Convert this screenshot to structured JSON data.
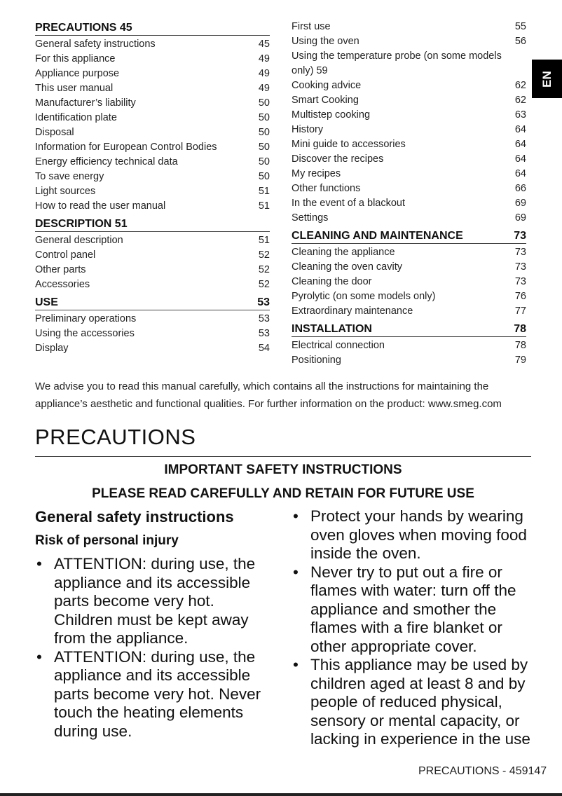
{
  "toc_left": [
    {
      "header": "PRECAUTIONS 45",
      "header_num": "",
      "items": [
        [
          "General safety instructions",
          "45"
        ],
        [
          "For this appliance",
          "49"
        ],
        [
          "Appliance purpose",
          "49"
        ],
        [
          "This user manual",
          "49"
        ],
        [
          "Manufacturer’s liability",
          "50"
        ],
        [
          "Identification plate",
          "50"
        ],
        [
          "Disposal",
          "50"
        ],
        [
          "Information for European Control Bodies",
          "50"
        ],
        [
          "Energy efficiency technical data",
          "50"
        ],
        [
          "To save energy",
          "50"
        ],
        [
          "Light sources",
          "51"
        ],
        [
          "How to read the user manual",
          "51"
        ]
      ]
    },
    {
      "header": "DESCRIPTION 51",
      "header_num": "",
      "items": [
        [
          "General description",
          "51"
        ],
        [
          "Control panel",
          "52"
        ],
        [
          "Other parts",
          "52"
        ],
        [
          "Accessories",
          "52"
        ]
      ]
    },
    {
      "header": "USE",
      "header_num": "53",
      "items": [
        [
          "Preliminary operations",
          "53"
        ],
        [
          "Using the accessories",
          "53"
        ],
        [
          "Display",
          "54"
        ]
      ]
    }
  ],
  "toc_right": [
    {
      "header": "",
      "header_num": "",
      "items": [
        [
          "First use",
          "55"
        ],
        [
          "Using the oven",
          "56"
        ],
        [
          "Using the temperature probe (on some models only) 59",
          ""
        ],
        [
          "Cooking advice",
          "62"
        ],
        [
          "Smart Cooking",
          "62"
        ],
        [
          "Multistep cooking",
          "63"
        ],
        [
          "History",
          "64"
        ],
        [
          "Mini guide to accessories",
          "64"
        ],
        [
          "Discover the recipes",
          "64"
        ],
        [
          "My recipes",
          "64"
        ],
        [
          "Other functions",
          "66"
        ],
        [
          "In the event of a blackout",
          "69"
        ],
        [
          "Settings",
          "69"
        ]
      ]
    },
    {
      "header": "CLEANING AND MAINTENANCE",
      "header_num": "73",
      "items": [
        [
          "Cleaning the appliance",
          "73"
        ],
        [
          "Cleaning the oven cavity",
          "73"
        ],
        [
          "Cleaning the door",
          "73"
        ],
        [
          "Pyrolytic (on some models only)",
          "76"
        ],
        [
          "Extraordinary maintenance",
          "77"
        ]
      ]
    },
    {
      "header": "INSTALLATION",
      "header_num": "78",
      "items": [
        [
          "Electrical connection",
          "78"
        ],
        [
          "Positioning",
          "79"
        ]
      ]
    }
  ],
  "language_tab": "EN",
  "intro": "We advise you to read this manual carefully, which contains all the instructions for maintaining the appliance’s aesthetic and functional qualities. For further information on the product: www.smeg.com",
  "title": "PRECAUTIONS",
  "important": "IMPORTANT SAFETY INSTRUCTIONS",
  "please_read": "PLEASE READ CAREFULLY AND RETAIN FOR FUTURE USE",
  "section_heading": "General safety instructions",
  "sub_heading": "Risk of personal injury",
  "bullets_left": [
    "ATTENTION: during use, the appliance and its accessible parts become very hot. Children must be kept away from the appliance.",
    "ATTENTION: during use, the appliance and its accessible parts become very hot. Never touch the heating elements during use."
  ],
  "bullets_right": [
    "Protect your hands by wearing oven gloves when moving food inside the oven.",
    "Never try to put out a fire or flames with water: turn off the appliance and smother the flames with a fire blanket or other appropriate cover.",
    "This appliance may be used by children aged at least 8 and by people of reduced physical, sensory or mental capacity, or lacking in experience in the use"
  ],
  "footer": "PRECAUTIONS  -  459147"
}
